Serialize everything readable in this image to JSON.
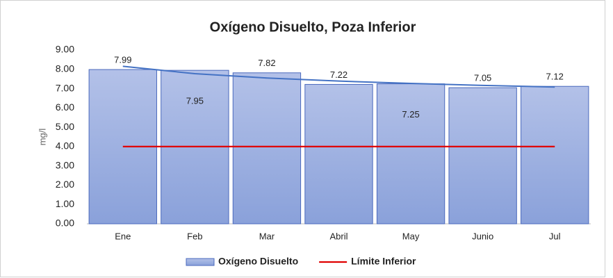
{
  "chart_data": {
    "type": "bar",
    "title": "Oxígeno Disuelto, Poza Inferior",
    "y_label": "mg/l",
    "categories": [
      "Ene",
      "Feb",
      "Mar",
      "Abril",
      "May",
      "Junio",
      "Jul"
    ],
    "series": [
      {
        "name": "Oxígeno Disuelto",
        "type": "bar",
        "color": "#9aaee0",
        "values": [
          7.99,
          7.95,
          7.82,
          7.22,
          7.25,
          7.05,
          7.12
        ]
      },
      {
        "name": "Límite Inferior",
        "type": "line",
        "color": "#e00000",
        "values": [
          4,
          4,
          4,
          4,
          4,
          4,
          4
        ]
      }
    ],
    "trendline": {
      "series": 0,
      "kind": "log",
      "color": "#4472c4"
    },
    "ylim": [
      0,
      9
    ],
    "yticks": [
      {
        "value": 0,
        "label": "0.00"
      },
      {
        "value": 1,
        "label": "1.00"
      },
      {
        "value": 2,
        "label": "2.00"
      },
      {
        "value": 3,
        "label": "3.00"
      },
      {
        "value": 4,
        "label": "4.00"
      },
      {
        "value": 5,
        "label": "5.00"
      },
      {
        "value": 6,
        "label": "6.00"
      },
      {
        "value": 7,
        "label": "7.00"
      },
      {
        "value": 8,
        "label": "8.00"
      },
      {
        "value": 9,
        "label": "9.00"
      }
    ],
    "grid": false,
    "legend": "bottom"
  }
}
